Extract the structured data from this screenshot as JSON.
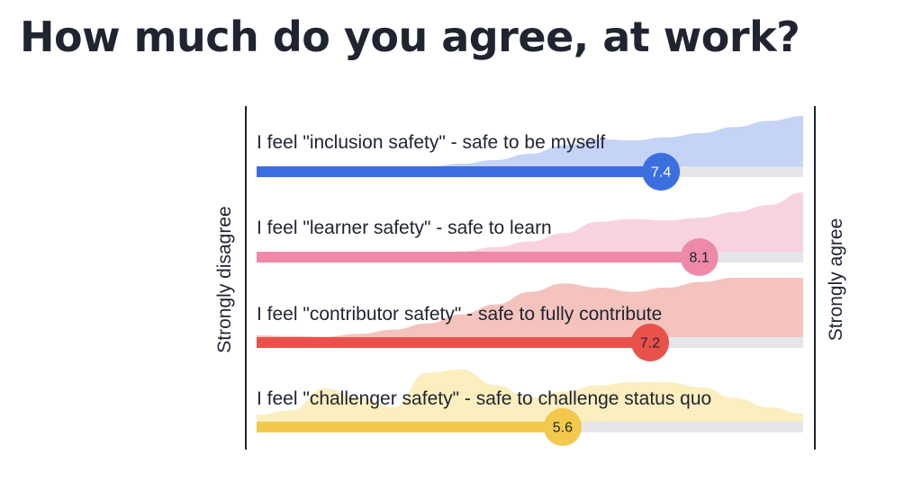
{
  "title": "How much do you agree, at work?",
  "chart_data": {
    "type": "bar",
    "title": "How much do you agree, at work?",
    "xlim": [
      0,
      10
    ],
    "scale_min_label": "Strongly disagree",
    "scale_max_label": "Strongly agree",
    "grid": false,
    "legend": "none",
    "series": [
      {
        "label": "I feel \"inclusion safety\" - safe to be myself",
        "value": 7.4,
        "value_label": "7.4",
        "color": "#3b6fe0",
        "fill_color": "#c4d3f6",
        "text_color": "#ffffff",
        "distribution": [
          0.1,
          0.09,
          0.08,
          0.1,
          0.13,
          0.17,
          0.22,
          0.28,
          0.38,
          0.52,
          0.62,
          0.6,
          0.65,
          0.72,
          0.82,
          0.92,
          1.0
        ]
      },
      {
        "label": "I feel \"learner safety\" - safe to learn",
        "value": 8.1,
        "value_label": "8.1",
        "color": "#ee8aa8",
        "fill_color": "#f8d3df",
        "text_color": "#1f2430",
        "distribution": [
          0.03,
          0.03,
          0.03,
          0.04,
          0.06,
          0.1,
          0.16,
          0.22,
          0.3,
          0.42,
          0.58,
          0.62,
          0.6,
          0.64,
          0.72,
          0.82,
          1.0
        ]
      },
      {
        "label": "I feel \"contributor safety\" - safe to fully contribute",
        "value": 7.2,
        "value_label": "7.2",
        "color": "#e8524a",
        "fill_color": "#f4c3be",
        "text_color": "#1f2430",
        "distribution": [
          0.18,
          0.17,
          0.16,
          0.2,
          0.26,
          0.35,
          0.48,
          0.62,
          0.8,
          0.92,
          0.86,
          0.8,
          0.86,
          0.94,
          1.0,
          1.0,
          1.0
        ]
      },
      {
        "label": "I feel \"challenger safety\" - safe to challenge status quo",
        "value": 5.6,
        "value_label": "5.6",
        "color": "#f2c94c",
        "fill_color": "#fbeebf",
        "text_color": "#1f2430",
        "distribution": [
          0.28,
          0.35,
          0.7,
          0.55,
          0.4,
          0.95,
          1.0,
          0.75,
          0.55,
          0.65,
          0.75,
          0.8,
          0.8,
          0.72,
          0.55,
          0.4,
          0.3
        ]
      }
    ]
  }
}
